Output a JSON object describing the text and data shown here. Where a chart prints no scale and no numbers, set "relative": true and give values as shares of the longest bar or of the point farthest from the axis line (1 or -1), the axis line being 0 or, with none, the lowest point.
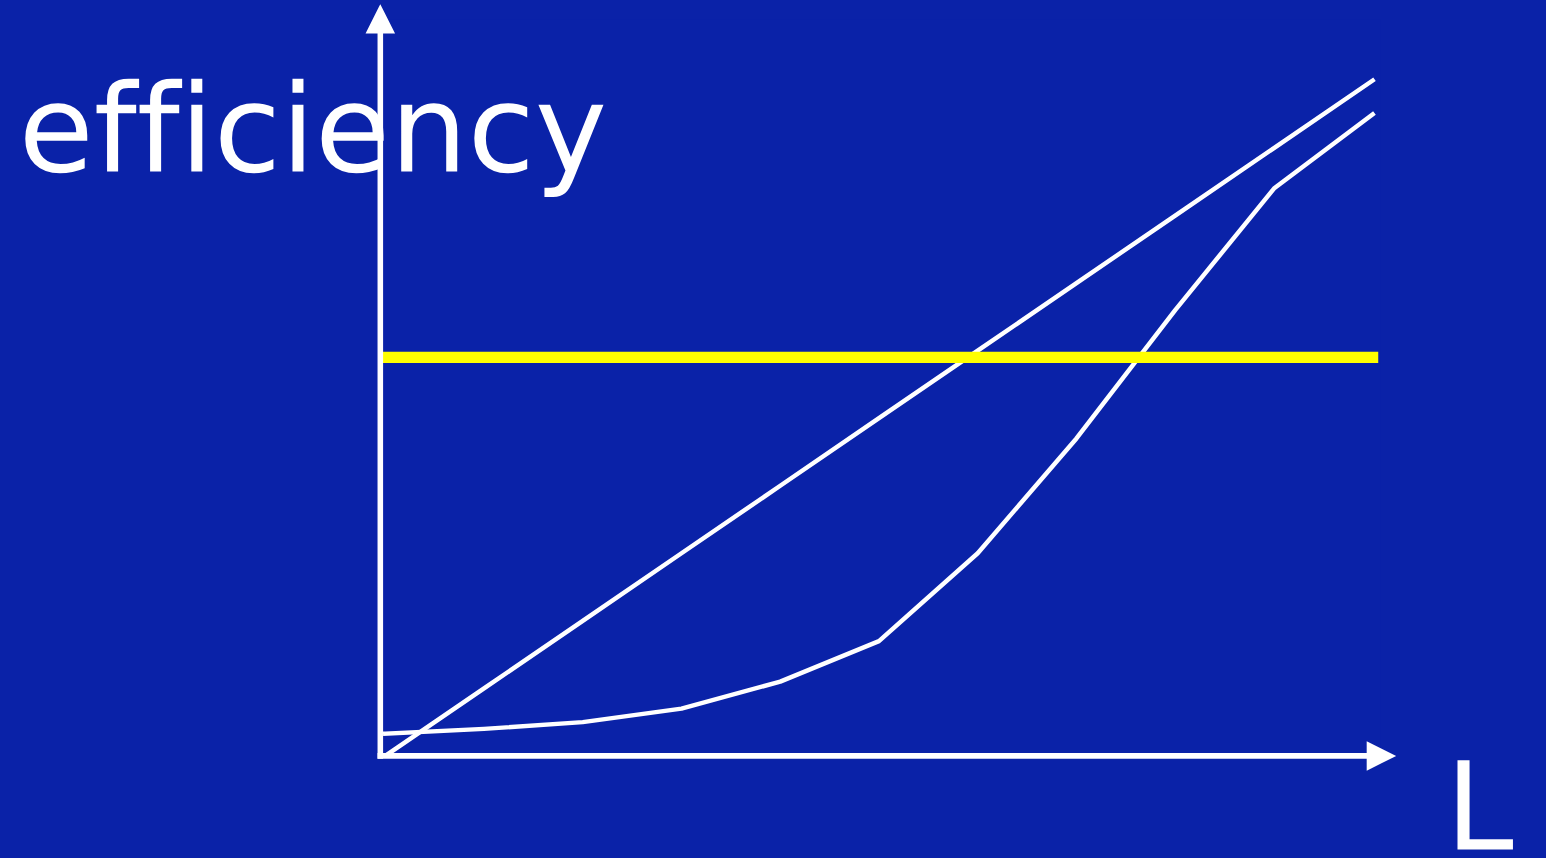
{
  "chart_data": {
    "type": "line",
    "relative": true,
    "xlabel": "L",
    "ylabel": "efficiency",
    "categories": [
      null,
      null,
      null,
      null,
      null,
      null,
      null,
      null,
      null,
      null,
      null
    ],
    "series": [
      {
        "color": "#ffffff",
        "values": [
          0,
          0.1,
          0.2,
          0.3,
          0.4,
          0.5,
          0.6,
          0.7,
          0.8,
          0.9,
          1.0
        ]
      },
      {
        "color": "#ffffff",
        "values": [
          0.033,
          0.04,
          0.05,
          0.07,
          0.11,
          0.17,
          0.3,
          0.47,
          0.66,
          0.84,
          0.95
        ]
      },
      {
        "color": "#ffff00",
        "values": [
          0.59,
          0.59,
          0.59,
          0.59,
          0.59,
          0.59,
          0.59,
          0.59,
          0.59,
          0.59,
          0.59
        ]
      }
    ],
    "legend": false,
    "marker": "none",
    "line_style": "solid"
  }
}
